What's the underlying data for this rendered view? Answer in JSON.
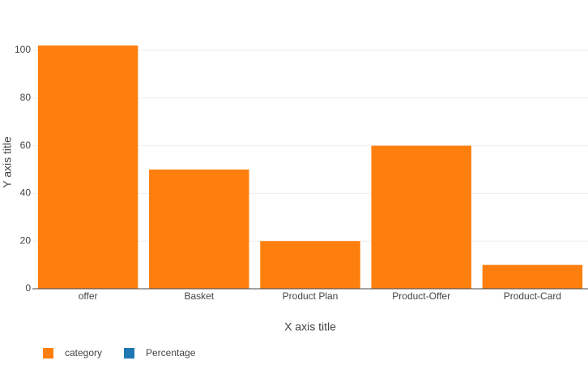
{
  "chart_data": {
    "type": "bar",
    "x_label": "X axis title",
    "y_label": "Y axis title",
    "categories": [
      "offer",
      "Basket",
      "Product Plan",
      "Product-Offer",
      "Product-Card"
    ],
    "series": [
      {
        "name": "category",
        "color": "#ff7f0e",
        "values": [
          102,
          50,
          20,
          60,
          10
        ]
      },
      {
        "name": "Percentage",
        "color": "#1f77b4",
        "values": [
          null,
          null,
          null,
          null,
          null
        ]
      }
    ],
    "ylim": [
      0,
      107.5
    ],
    "yticks": [
      0,
      20,
      40,
      60,
      80,
      100
    ],
    "grid": true
  }
}
